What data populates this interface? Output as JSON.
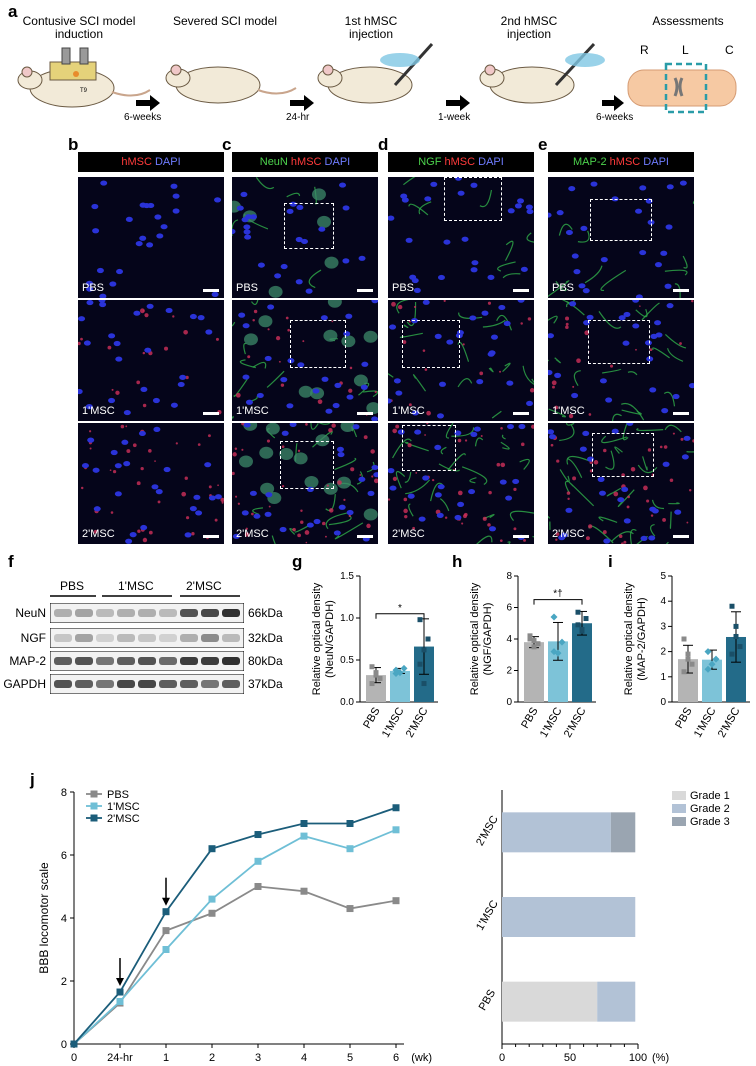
{
  "panel_letters": {
    "a": "a",
    "b": "b",
    "c": "c",
    "d": "d",
    "e": "e",
    "f": "f",
    "g": "g",
    "h": "h",
    "i": "i",
    "j": "j"
  },
  "schematic": {
    "steps": [
      "Contusive SCI model\ninduction",
      "Severed SCI model",
      "1st hMSC\ninjection",
      "2nd hMSC\ninjection",
      "Assessments"
    ],
    "intervals": [
      "6-weeks",
      "24-hr",
      "1-week",
      "6-weeks"
    ],
    "spine_regions": [
      "R",
      "L",
      "C"
    ],
    "vertebra_label": "T9"
  },
  "microscopy": {
    "headers": [
      [
        {
          "t": "hMSC",
          "c": "r"
        },
        {
          "t": " DAPI",
          "c": "b"
        }
      ],
      [
        {
          "t": "NeuN",
          "c": "g"
        },
        {
          "t": " hMSC",
          "c": "r"
        },
        {
          "t": " DAPI",
          "c": "b"
        }
      ],
      [
        {
          "t": "NGF",
          "c": "g"
        },
        {
          "t": " hMSC",
          "c": "r"
        },
        {
          "t": " DAPI",
          "c": "b"
        }
      ],
      [
        {
          "t": "MAP-2",
          "c": "g"
        },
        {
          "t": " hMSC",
          "c": "r"
        },
        {
          "t": " DAPI",
          "c": "b"
        }
      ]
    ],
    "row_labels": [
      "PBS",
      "1'MSC",
      "2'MSC"
    ]
  },
  "western_blot": {
    "groups": [
      "PBS",
      "1'MSC",
      "2'MSC"
    ],
    "proteins": [
      "NeuN",
      "NGF",
      "MAP-2",
      "GAPDH"
    ],
    "sizes": [
      "66kDa",
      "32kDa",
      "80kDa",
      "37kDa"
    ]
  },
  "chart_data": [
    {
      "id": "g",
      "type": "bar",
      "ylabel": "Relative optical density\n(NeuN/GAPDH)",
      "categories": [
        "PBS",
        "1'MSC",
        "2'MSC"
      ],
      "values": [
        0.32,
        0.37,
        0.66
      ],
      "error": [
        0.09,
        0.03,
        0.33
      ],
      "points": [
        [
          0.42,
          0.35,
          0.28,
          0.22,
          0.32
        ],
        [
          0.38,
          0.35,
          0.4,
          0.34
        ],
        [
          0.98,
          0.62,
          0.75,
          0.45,
          0.22
        ]
      ],
      "ylim": [
        0,
        1.5
      ],
      "yticks": [
        "0.0",
        "0.5",
        "1.0",
        "1.5"
      ],
      "annotation": "*",
      "ann_from": 0,
      "ann_to": 2,
      "ann_y": 1.05
    },
    {
      "id": "h",
      "type": "bar",
      "ylabel": "Relative optical density\n(NGF/GAPDH)",
      "categories": [
        "PBS",
        "1'MSC",
        "2'MSC"
      ],
      "values": [
        3.8,
        3.85,
        5.0
      ],
      "error": [
        0.35,
        1.2,
        0.75
      ],
      "points": [
        [
          4.2,
          3.5,
          3.7,
          4.0,
          3.9
        ],
        [
          5.4,
          3.1,
          3.8,
          3.2
        ],
        [
          5.7,
          4.5,
          5.3,
          4.9,
          4.6
        ]
      ],
      "ylim": [
        0,
        8
      ],
      "yticks": [
        "0",
        "2",
        "4",
        "6",
        "8"
      ],
      "annotation": "*†",
      "ann_from": 0,
      "ann_to": 2,
      "ann_y": 6.5
    },
    {
      "id": "i",
      "type": "bar",
      "ylabel": "Relative optical density\n(MAP-2/GAPDH)",
      "categories": [
        "PBS",
        "1'MSC",
        "2'MSC"
      ],
      "values": [
        1.7,
        1.68,
        2.58
      ],
      "error": [
        0.55,
        0.38,
        1.0
      ],
      "points": [
        [
          2.5,
          1.7,
          1.5,
          1.2,
          1.9
        ],
        [
          2.0,
          1.5,
          1.7,
          1.3
        ],
        [
          3.8,
          2.6,
          2.2,
          1.9,
          3.0
        ]
      ],
      "ylim": [
        0,
        5
      ],
      "yticks": [
        "0",
        "1",
        "2",
        "3",
        "4",
        "5"
      ]
    },
    {
      "id": "j-line",
      "type": "line",
      "ylabel": "BBB locomotor scale",
      "x": [
        "0",
        "24-hr",
        "1",
        "2",
        "3",
        "4",
        "5",
        "6"
      ],
      "xunit": "(wk)",
      "ylim": [
        0,
        8
      ],
      "yticks": [
        "0",
        "2",
        "4",
        "6",
        "8"
      ],
      "series": [
        {
          "name": "PBS",
          "color": "#8a8a8a",
          "values": [
            0,
            1.3,
            3.6,
            4.15,
            5.0,
            4.85,
            4.3,
            4.55
          ]
        },
        {
          "name": "1'MSC",
          "color": "#6fbfd6",
          "values": [
            0,
            1.35,
            3.0,
            4.6,
            5.8,
            6.6,
            6.2,
            6.8
          ]
        },
        {
          "name": "2'MSC",
          "color": "#1b5d7a",
          "values": [
            0,
            1.65,
            4.2,
            6.2,
            6.65,
            7.0,
            7.0,
            7.5
          ]
        }
      ],
      "arrows_at": [
        1,
        2
      ]
    },
    {
      "id": "j-bar",
      "type": "bar",
      "orientation": "horizontal-stacked",
      "categories": [
        "2'MSC",
        "1'MSC",
        "PBS"
      ],
      "xticks": [
        "0",
        "50",
        "100"
      ],
      "xunit": "(%)",
      "series": [
        {
          "name": "Grade 1",
          "color": "#d9d9d9",
          "values": [
            0,
            0,
            70
          ]
        },
        {
          "name": "Grade 2",
          "color": "#b2c2d6",
          "values": [
            80,
            98,
            28
          ]
        },
        {
          "name": "Grade 3",
          "color": "#9aa5b1",
          "values": [
            18,
            0,
            0
          ]
        }
      ]
    }
  ]
}
